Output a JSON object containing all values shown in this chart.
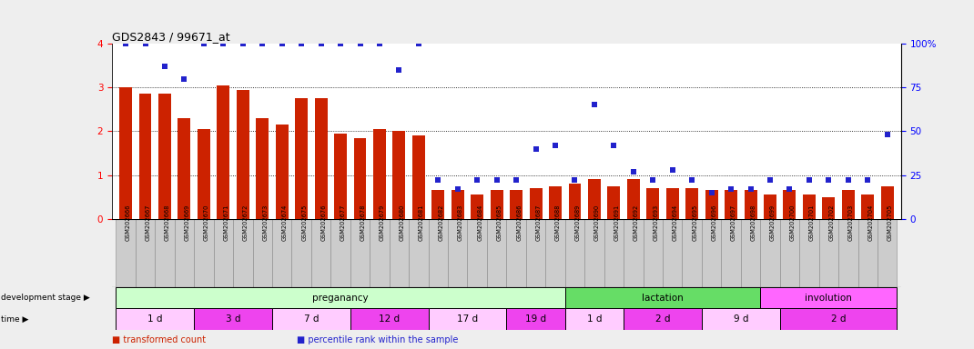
{
  "title": "GDS2843 / 99671_at",
  "samples": [
    "GSM202666",
    "GSM202667",
    "GSM202668",
    "GSM202669",
    "GSM202670",
    "GSM202671",
    "GSM202672",
    "GSM202673",
    "GSM202674",
    "GSM202675",
    "GSM202676",
    "GSM202677",
    "GSM202678",
    "GSM202679",
    "GSM202680",
    "GSM202681",
    "GSM202682",
    "GSM202683",
    "GSM202684",
    "GSM202685",
    "GSM202686",
    "GSM202687",
    "GSM202688",
    "GSM202689",
    "GSM202690",
    "GSM202691",
    "GSM202692",
    "GSM202693",
    "GSM202694",
    "GSM202695",
    "GSM202696",
    "GSM202697",
    "GSM202698",
    "GSM202699",
    "GSM202700",
    "GSM202701",
    "GSM202702",
    "GSM202703",
    "GSM202704",
    "GSM202705"
  ],
  "bar_values": [
    3.0,
    2.85,
    2.85,
    2.3,
    2.05,
    3.05,
    2.95,
    2.3,
    2.15,
    2.75,
    2.75,
    1.95,
    1.85,
    2.05,
    2.0,
    1.9,
    0.65,
    0.65,
    0.55,
    0.65,
    0.65,
    0.7,
    0.75,
    0.8,
    0.9,
    0.75,
    0.9,
    0.7,
    0.7,
    0.7,
    0.65,
    0.65,
    0.65,
    0.55,
    0.65,
    0.55,
    0.5,
    0.65,
    0.55,
    0.75
  ],
  "percentile_values": [
    100,
    100,
    87,
    80,
    100,
    100,
    100,
    100,
    100,
    100,
    100,
    100,
    100,
    100,
    85,
    100,
    22,
    17,
    22,
    22,
    22,
    40,
    42,
    22,
    65,
    42,
    27,
    22,
    28,
    22,
    15,
    17,
    17,
    22,
    17,
    22,
    22,
    22,
    22,
    48
  ],
  "bar_color": "#cc2200",
  "percentile_color": "#2222cc",
  "ylim_left": [
    0,
    4
  ],
  "ylim_right": [
    0,
    100
  ],
  "yticks_left": [
    0,
    1,
    2,
    3,
    4
  ],
  "yticks_right": [
    0,
    25,
    50,
    75,
    100
  ],
  "dev_stage_groups": [
    {
      "label": "preganancy",
      "start": 0,
      "end": 23,
      "color": "#ccffcc"
    },
    {
      "label": "lactation",
      "start": 23,
      "end": 33,
      "color": "#66dd66"
    },
    {
      "label": "involution",
      "start": 33,
      "end": 40,
      "color": "#ff66ff"
    }
  ],
  "time_groups": [
    {
      "label": "1 d",
      "start": 0,
      "end": 4,
      "color": "#ffccff"
    },
    {
      "label": "3 d",
      "start": 4,
      "end": 8,
      "color": "#ee44ee"
    },
    {
      "label": "7 d",
      "start": 8,
      "end": 12,
      "color": "#ffccff"
    },
    {
      "label": "12 d",
      "start": 12,
      "end": 16,
      "color": "#ee44ee"
    },
    {
      "label": "17 d",
      "start": 16,
      "end": 20,
      "color": "#ffccff"
    },
    {
      "label": "19 d",
      "start": 20,
      "end": 23,
      "color": "#ee44ee"
    },
    {
      "label": "1 d",
      "start": 23,
      "end": 26,
      "color": "#ffccff"
    },
    {
      "label": "2 d",
      "start": 26,
      "end": 30,
      "color": "#ee44ee"
    },
    {
      "label": "9 d",
      "start": 30,
      "end": 34,
      "color": "#ffccff"
    },
    {
      "label": "2 d",
      "start": 34,
      "end": 40,
      "color": "#ee44ee"
    }
  ],
  "tick_bg_color": "#cccccc",
  "fig_bg_color": "#eeeeee",
  "legend": [
    {
      "label": "transformed count",
      "color": "#cc2200"
    },
    {
      "label": "percentile rank within the sample",
      "color": "#2222cc"
    }
  ]
}
